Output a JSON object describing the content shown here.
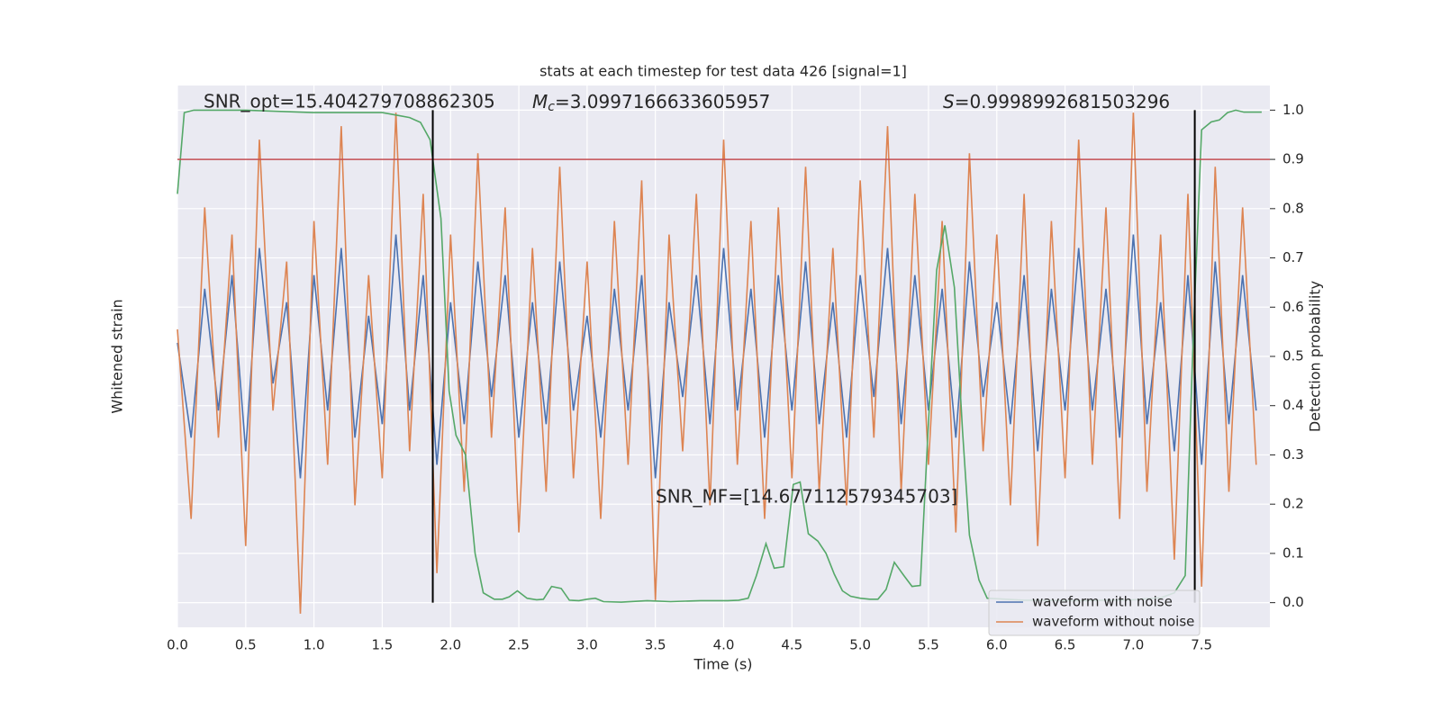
{
  "chart_data": {
    "type": "line",
    "title": "stats at each timestep for test data 426 [signal=1]",
    "xlabel": "Time (s)",
    "ylabel": "Whitened strain",
    "y2label": "Detection probability",
    "xlim": [
      0,
      8
    ],
    "ylim": [
      -1,
      1
    ],
    "y2lim": [
      -0.05,
      1.05
    ],
    "xticks": [
      {
        "value": 0,
        "label": "0.0"
      },
      0.5,
      {
        "value": 1,
        "label": "1.0"
      },
      1.5,
      {
        "value": 2,
        "label": "2.0"
      },
      2.5,
      {
        "value": 3,
        "label": "3.0"
      },
      3.5,
      {
        "value": 4,
        "label": "4.0"
      },
      4.5,
      {
        "value": 5,
        "label": "5.0"
      },
      5.5,
      {
        "value": 6,
        "label": "6.0"
      },
      6.5,
      {
        "value": 7,
        "label": "7.0"
      },
      7.5
    ],
    "y2ticks": [
      {
        "value": 0,
        "label": "0.0"
      },
      0.1,
      0.2,
      0.3,
      0.4,
      0.5,
      0.6,
      0.7,
      0.8,
      0.9,
      {
        "value": 1,
        "label": "1.0"
      }
    ],
    "grid": true,
    "legend": "lower right",
    "x": [
      0,
      0.1,
      0.2,
      0.3,
      0.4,
      0.5,
      0.6,
      0.7,
      0.8,
      0.9,
      1,
      1.1,
      1.2,
      1.3,
      1.4,
      1.5,
      1.6,
      1.7,
      1.8,
      1.9,
      2,
      2.1,
      2.2,
      2.3,
      2.4,
      2.5,
      2.6,
      2.7,
      2.8,
      2.9,
      3,
      3.1,
      3.2,
      3.3,
      3.4,
      3.5,
      3.6,
      3.7,
      3.8,
      3.9,
      4,
      4.1,
      4.2,
      4.3,
      4.4,
      4.5,
      4.6,
      4.7,
      4.8,
      4.9,
      5,
      5.1,
      5.2,
      5.3,
      5.4,
      5.5,
      5.6,
      5.7,
      5.8,
      5.9,
      6,
      6.1,
      6.2,
      6.3,
      6.4,
      6.5,
      6.6,
      6.7,
      6.8,
      6.9,
      7,
      7.1,
      7.2,
      7.3,
      7.4,
      7.5,
      7.6,
      7.7,
      7.8,
      7.9
    ],
    "series": [
      {
        "name": "waveform with noise",
        "color": "#4c72b0",
        "axis": "y",
        "values": [
          0.05,
          -0.3,
          0.25,
          -0.2,
          0.3,
          -0.35,
          0.4,
          -0.1,
          0.2,
          -0.45,
          0.3,
          -0.2,
          0.4,
          -0.3,
          0.15,
          -0.25,
          0.45,
          -0.2,
          0.3,
          -0.4,
          0.2,
          -0.25,
          0.35,
          -0.15,
          0.3,
          -0.3,
          0.2,
          -0.25,
          0.35,
          -0.2,
          0.15,
          -0.3,
          0.25,
          -0.2,
          0.3,
          -0.45,
          0.2,
          -0.15,
          0.3,
          -0.25,
          0.4,
          -0.2,
          0.25,
          -0.3,
          0.3,
          -0.2,
          0.35,
          -0.25,
          0.2,
          -0.3,
          0.3,
          -0.15,
          0.4,
          -0.25,
          0.3,
          -0.2,
          0.25,
          -0.3,
          0.35,
          -0.15,
          0.2,
          -0.25,
          0.3,
          -0.35,
          0.25,
          -0.2,
          0.4,
          -0.2,
          0.25,
          -0.3,
          0.45,
          -0.25,
          0.2,
          -0.35,
          0.3,
          -0.4,
          0.35,
          -0.25,
          0.3,
          -0.2
        ]
      },
      {
        "name": "waveform without noise",
        "color": "#dd8452",
        "axis": "y",
        "values": [
          0.1,
          -0.6,
          0.55,
          -0.3,
          0.45,
          -0.7,
          0.8,
          -0.2,
          0.35,
          -0.95,
          0.5,
          -0.4,
          0.85,
          -0.55,
          0.3,
          -0.45,
          0.9,
          -0.35,
          0.6,
          -0.8,
          0.45,
          -0.5,
          0.75,
          -0.3,
          0.55,
          -0.65,
          0.4,
          -0.5,
          0.7,
          -0.45,
          0.35,
          -0.6,
          0.5,
          -0.4,
          0.65,
          -0.9,
          0.45,
          -0.35,
          0.6,
          -0.55,
          0.8,
          -0.4,
          0.5,
          -0.6,
          0.55,
          -0.45,
          0.7,
          -0.5,
          0.4,
          -0.55,
          0.65,
          -0.3,
          0.85,
          -0.5,
          0.6,
          -0.4,
          0.5,
          -0.65,
          0.75,
          -0.35,
          0.45,
          -0.55,
          0.6,
          -0.7,
          0.5,
          -0.45,
          0.8,
          -0.4,
          0.55,
          -0.6,
          0.9,
          -0.5,
          0.45,
          -0.75,
          0.6,
          -0.85,
          0.7,
          -0.5,
          0.55,
          -0.4
        ]
      },
      {
        "color": "#55a868",
        "axis": "y2",
        "x": [
          0,
          0.05,
          0.12,
          0.5,
          0.99,
          1.5,
          1.6,
          1.7,
          1.78,
          1.85,
          1.9,
          1.93,
          1.99,
          2.04,
          2.11,
          2.18,
          2.24,
          2.32,
          2.38,
          2.43,
          2.49,
          2.56,
          2.63,
          2.68,
          2.74,
          2.81,
          2.87,
          2.94,
          3.0,
          3.06,
          3.12,
          3.25,
          3.44,
          3.61,
          3.83,
          4.03,
          4.11,
          4.18,
          4.24,
          4.31,
          4.37,
          4.44,
          4.51,
          4.56,
          4.62,
          4.69,
          4.75,
          4.81,
          4.87,
          4.93,
          5.0,
          5.07,
          5.13,
          5.19,
          5.25,
          5.32,
          5.38,
          5.44,
          5.5,
          5.56,
          5.62,
          5.69,
          5.75,
          5.8,
          5.87,
          5.93,
          6.2,
          6.6,
          7.0,
          7.2,
          7.3,
          7.38,
          7.44,
          7.5,
          7.57,
          7.63,
          7.69,
          7.75,
          7.81,
          7.94
        ],
        "values": [
          0.83,
          0.995,
          1.0,
          1.0,
          0.995,
          0.995,
          0.99,
          0.985,
          0.975,
          0.94,
          0.84,
          0.78,
          0.43,
          0.34,
          0.3,
          0.1,
          0.02,
          0.007,
          0.007,
          0.012,
          0.024,
          0.009,
          0.006,
          0.007,
          0.033,
          0.029,
          0.005,
          0.004,
          0.007,
          0.009,
          0.002,
          0.001,
          0.004,
          0.002,
          0.004,
          0.004,
          0.005,
          0.009,
          0.055,
          0.12,
          0.07,
          0.073,
          0.24,
          0.245,
          0.14,
          0.125,
          0.1,
          0.058,
          0.024,
          0.013,
          0.009,
          0.007,
          0.007,
          0.027,
          0.082,
          0.055,
          0.033,
          0.035,
          0.365,
          0.675,
          0.766,
          0.64,
          0.347,
          0.137,
          0.046,
          0.009,
          0.005,
          0.004,
          0.006,
          0.01,
          0.02,
          0.055,
          0.55,
          0.96,
          0.976,
          0.98,
          0.995,
          1.0,
          0.996,
          0.996
        ]
      }
    ],
    "hline": {
      "value": 0.9,
      "color": "#c44e52",
      "axis": "y2"
    },
    "vlines": {
      "values": [
        1.87,
        7.45
      ],
      "ymin": 0,
      "ymax": 1,
      "color": "#000000",
      "axis": "y2"
    },
    "annotations": [
      {
        "text": "SNR_opt=15.404279708862305"
      },
      {
        "symbol": "M",
        "subscript": "c",
        "text": "=3.0997166633605957"
      },
      {
        "symbol": "S",
        "text": "=0.9998992681503296"
      },
      {
        "text": "SNR_MF=[14.677112579345703]"
      }
    ]
  }
}
